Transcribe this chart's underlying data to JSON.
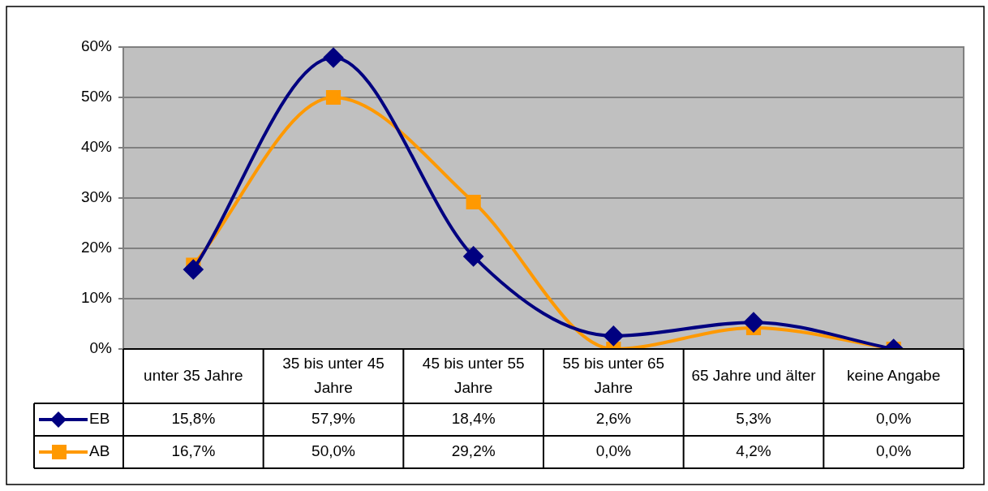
{
  "chart_data": {
    "type": "line",
    "categories": [
      "unter 35 Jahre",
      "35 bis unter 45 Jahre",
      "45 bis unter 55 Jahre",
      "55 bis unter 65 Jahre",
      "65 Jahre und älter",
      "keine Angabe"
    ],
    "series": [
      {
        "name": "EB",
        "color": "#000080",
        "marker": "diamond",
        "values": [
          15.8,
          57.9,
          18.4,
          2.6,
          5.3,
          0.0
        ],
        "value_labels": [
          "15,8%",
          "57,9%",
          "18,4%",
          "2,6%",
          "5,3%",
          "0,0%"
        ]
      },
      {
        "name": "AB",
        "color": "#ff9900",
        "marker": "square",
        "values": [
          16.7,
          50.0,
          29.2,
          0.0,
          4.2,
          0.0
        ],
        "value_labels": [
          "16,7%",
          "50,0%",
          "29,2%",
          "0,0%",
          "4,2%",
          "0,0%"
        ]
      }
    ],
    "ylim": [
      0,
      60
    ],
    "yticks": [
      {
        "value": 0,
        "label": "0%"
      },
      {
        "value": 10,
        "label": "10%"
      },
      {
        "value": 20,
        "label": "20%"
      },
      {
        "value": 30,
        "label": "30%"
      },
      {
        "value": 40,
        "label": "40%"
      },
      {
        "value": 50,
        "label": "50%"
      },
      {
        "value": 60,
        "label": "60%"
      }
    ],
    "grid": "y",
    "legend": "bottom left",
    "line_style": "solid"
  }
}
